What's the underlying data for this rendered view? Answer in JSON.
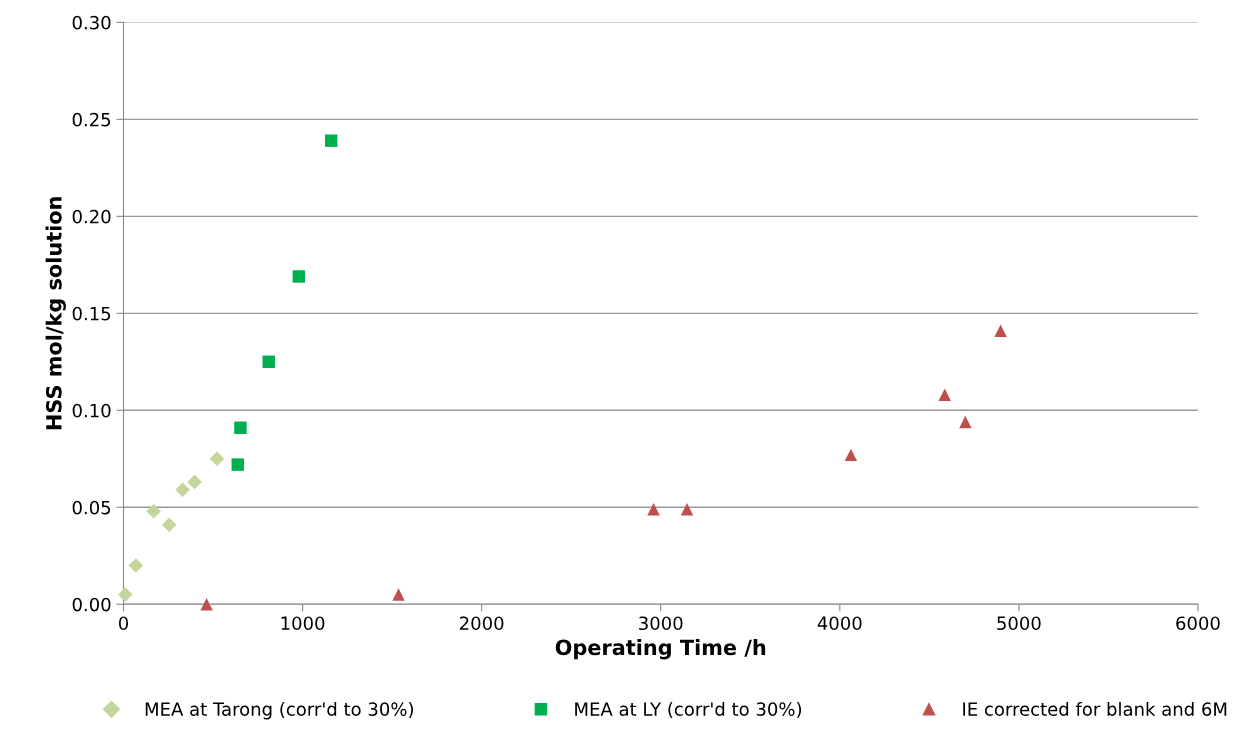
{
  "chart_data": {
    "type": "scatter",
    "xlabel": "Operating Time /h",
    "ylabel": "HSS mol/kg solution",
    "xlim": [
      0,
      6000
    ],
    "xticks": [
      0,
      1000,
      2000,
      3000,
      4000,
      5000,
      6000
    ],
    "ylim": [
      0,
      0.3
    ],
    "yticks": [
      {
        "value": 0,
        "label": "0.00"
      },
      {
        "value": 0.05,
        "label": "0.05"
      },
      {
        "value": 0.1,
        "label": "0.10"
      },
      {
        "value": 0.15,
        "label": "0.15"
      },
      {
        "value": 0.2,
        "label": "0.20"
      },
      {
        "value": 0.25,
        "label": "0.25"
      },
      {
        "value": 0.3,
        "label": "0.30"
      }
    ],
    "grid": "y",
    "legend": "bottom",
    "series": [
      {
        "name": "MEA at Tarong (corr'd to 30%)",
        "color": "#c3d69b",
        "marker": "diamond",
        "x": [
          10,
          69,
          168,
          255,
          330,
          397,
          522
        ],
        "values": [
          0.005,
          0.02,
          0.048,
          0.041,
          0.059,
          0.063,
          0.075
        ]
      },
      {
        "name": "MEA at LY (corr'd to 30%)",
        "color": "#00b050",
        "marker": "square",
        "x": [
          638,
          653,
          811,
          979,
          1160
        ],
        "values": [
          0.072,
          0.091,
          0.125,
          0.169,
          0.239
        ]
      },
      {
        "name": "IE corrected for blank and 6M",
        "color": "#c0504d",
        "marker": "triangle",
        "x": [
          464,
          1536,
          2960,
          3147,
          4062,
          4586,
          4701,
          4898
        ],
        "values": [
          0.0,
          0.005,
          0.049,
          0.049,
          0.077,
          0.108,
          0.094,
          0.141
        ]
      }
    ]
  }
}
